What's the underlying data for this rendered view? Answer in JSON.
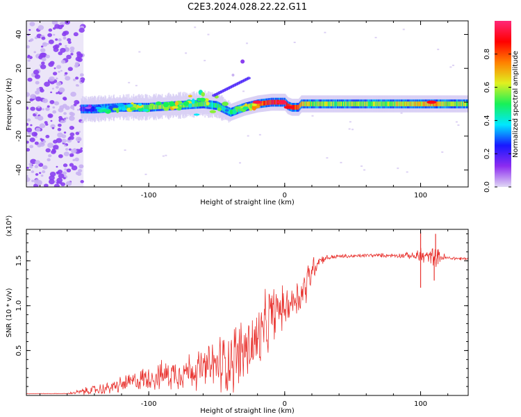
{
  "figure_title": "C2E3.2024.028.22.22.G11",
  "colorbar": {
    "label": "Normalized spectral amplitude",
    "ticks": [
      "0.0",
      "0.2",
      "0.4",
      "0.6",
      "0.8"
    ],
    "tick_values": [
      0.0,
      0.2,
      0.4,
      0.6,
      0.8
    ],
    "range": [
      0,
      1
    ],
    "colormap": [
      "#e0d8f4",
      "#8d2cf0",
      "#1818ff",
      "#00e8ff",
      "#18f058",
      "#e0f020",
      "#ff8000",
      "#ff0000",
      "#ff2878"
    ]
  },
  "chart_data": [
    {
      "type": "heatmap",
      "title": "",
      "xlabel": "Height of straight line (km)",
      "ylabel": "Frequency (Hz)",
      "xlim": [
        -190,
        135
      ],
      "ylim": [
        -50,
        48
      ],
      "xticks": [
        -100,
        0,
        100
      ],
      "xtick_labels": [
        "-100",
        "0",
        "100"
      ],
      "yticks": [
        -40,
        -20,
        0,
        20,
        40
      ],
      "ytick_labels": [
        "-40",
        "-20",
        "0",
        "20",
        "40"
      ],
      "noise_region": {
        "x_range": [
          -190,
          -148
        ],
        "y_range": [
          -50,
          48
        ],
        "amplitude": 0.05
      },
      "signal_band": {
        "x": [
          -150,
          -140,
          -120,
          -100,
          -80,
          -60,
          -50,
          -45,
          -40,
          -30,
          -20,
          -10,
          0,
          2,
          5,
          10,
          12,
          20,
          40,
          60,
          80,
          100,
          110,
          120,
          135
        ],
        "center_freq": [
          -4,
          -4,
          -3,
          -3,
          -2,
          -1,
          -2,
          -4,
          -6,
          -3,
          -1,
          0,
          0,
          -2,
          -3,
          -3,
          -1,
          -1,
          -1,
          -1,
          -1,
          -1,
          -1,
          -1,
          -1
        ],
        "amplitude": [
          0.15,
          0.3,
          0.45,
          0.55,
          0.55,
          0.5,
          0.45,
          0.4,
          0.45,
          0.55,
          0.7,
          0.9,
          0.9,
          0.8,
          0.85,
          0.75,
          0.7,
          0.6,
          0.55,
          0.55,
          0.6,
          0.65,
          0.7,
          0.6,
          0.55
        ]
      },
      "features": [
        {
          "x": -20,
          "y": 0,
          "amplitude": 0.95
        },
        {
          "x": -2,
          "y": 0,
          "amplitude": 0.95
        },
        {
          "x": 3,
          "y": -3,
          "amplitude": 0.9
        },
        {
          "x": 108,
          "y": 0,
          "amplitude": 0.9
        }
      ],
      "grid": false
    },
    {
      "type": "line",
      "title": "",
      "xlabel": "Height of straight line (km)",
      "ylabel": "SNR (10 * v/v)",
      "y_multiplier": "(x10⁴)",
      "xlim": [
        -190,
        135
      ],
      "ylim": [
        0,
        1.85
      ],
      "xticks": [
        -100,
        0,
        100
      ],
      "xtick_labels": [
        "-100",
        "0",
        "100"
      ],
      "yticks": [
        0.5,
        1.0,
        1.5
      ],
      "ytick_labels": [
        "0.5",
        "1.0",
        "1.5"
      ],
      "color": "#e8302c",
      "series": [
        {
          "x": [
            -190,
            -160,
            -150,
            -140,
            -130,
            -120,
            -110,
            -100,
            -90,
            -80,
            -70,
            -60,
            -55,
            -50,
            -45,
            -40,
            -35,
            -30,
            -25,
            -20,
            -15,
            -10,
            -5,
            0,
            5,
            10,
            15,
            20,
            25,
            30,
            40,
            50,
            60,
            70,
            80,
            90,
            95,
            100,
            105,
            110,
            115,
            120,
            135
          ],
          "values": [
            0.02,
            0.02,
            0.04,
            0.06,
            0.08,
            0.12,
            0.16,
            0.2,
            0.22,
            0.25,
            0.28,
            0.3,
            0.32,
            0.34,
            0.36,
            0.4,
            0.45,
            0.5,
            0.55,
            0.6,
            0.7,
            0.9,
            0.95,
            0.98,
            1.05,
            1.1,
            1.2,
            1.4,
            1.5,
            1.53,
            1.55,
            1.55,
            1.56,
            1.56,
            1.56,
            1.56,
            1.55,
            1.55,
            1.55,
            1.55,
            1.54,
            1.53,
            1.52
          ],
          "noise": [
            0.003,
            0.003,
            0.03,
            0.05,
            0.06,
            0.08,
            0.1,
            0.12,
            0.14,
            0.16,
            0.18,
            0.2,
            0.22,
            0.28,
            0.32,
            0.32,
            0.35,
            0.35,
            0.35,
            0.35,
            0.35,
            0.3,
            0.25,
            0.18,
            0.18,
            0.2,
            0.22,
            0.15,
            0.06,
            0.03,
            0.02,
            0.02,
            0.02,
            0.02,
            0.02,
            0.03,
            0.03,
            0.12,
            0.05,
            0.1,
            0.06,
            0.02,
            0.02
          ]
        }
      ],
      "spikes": [
        {
          "x": 100,
          "value": 1.82
        },
        {
          "x": 100,
          "value": 1.2
        },
        {
          "x": 111,
          "value": 1.8
        },
        {
          "x": 110,
          "value": 1.28
        }
      ],
      "grid": false
    }
  ]
}
